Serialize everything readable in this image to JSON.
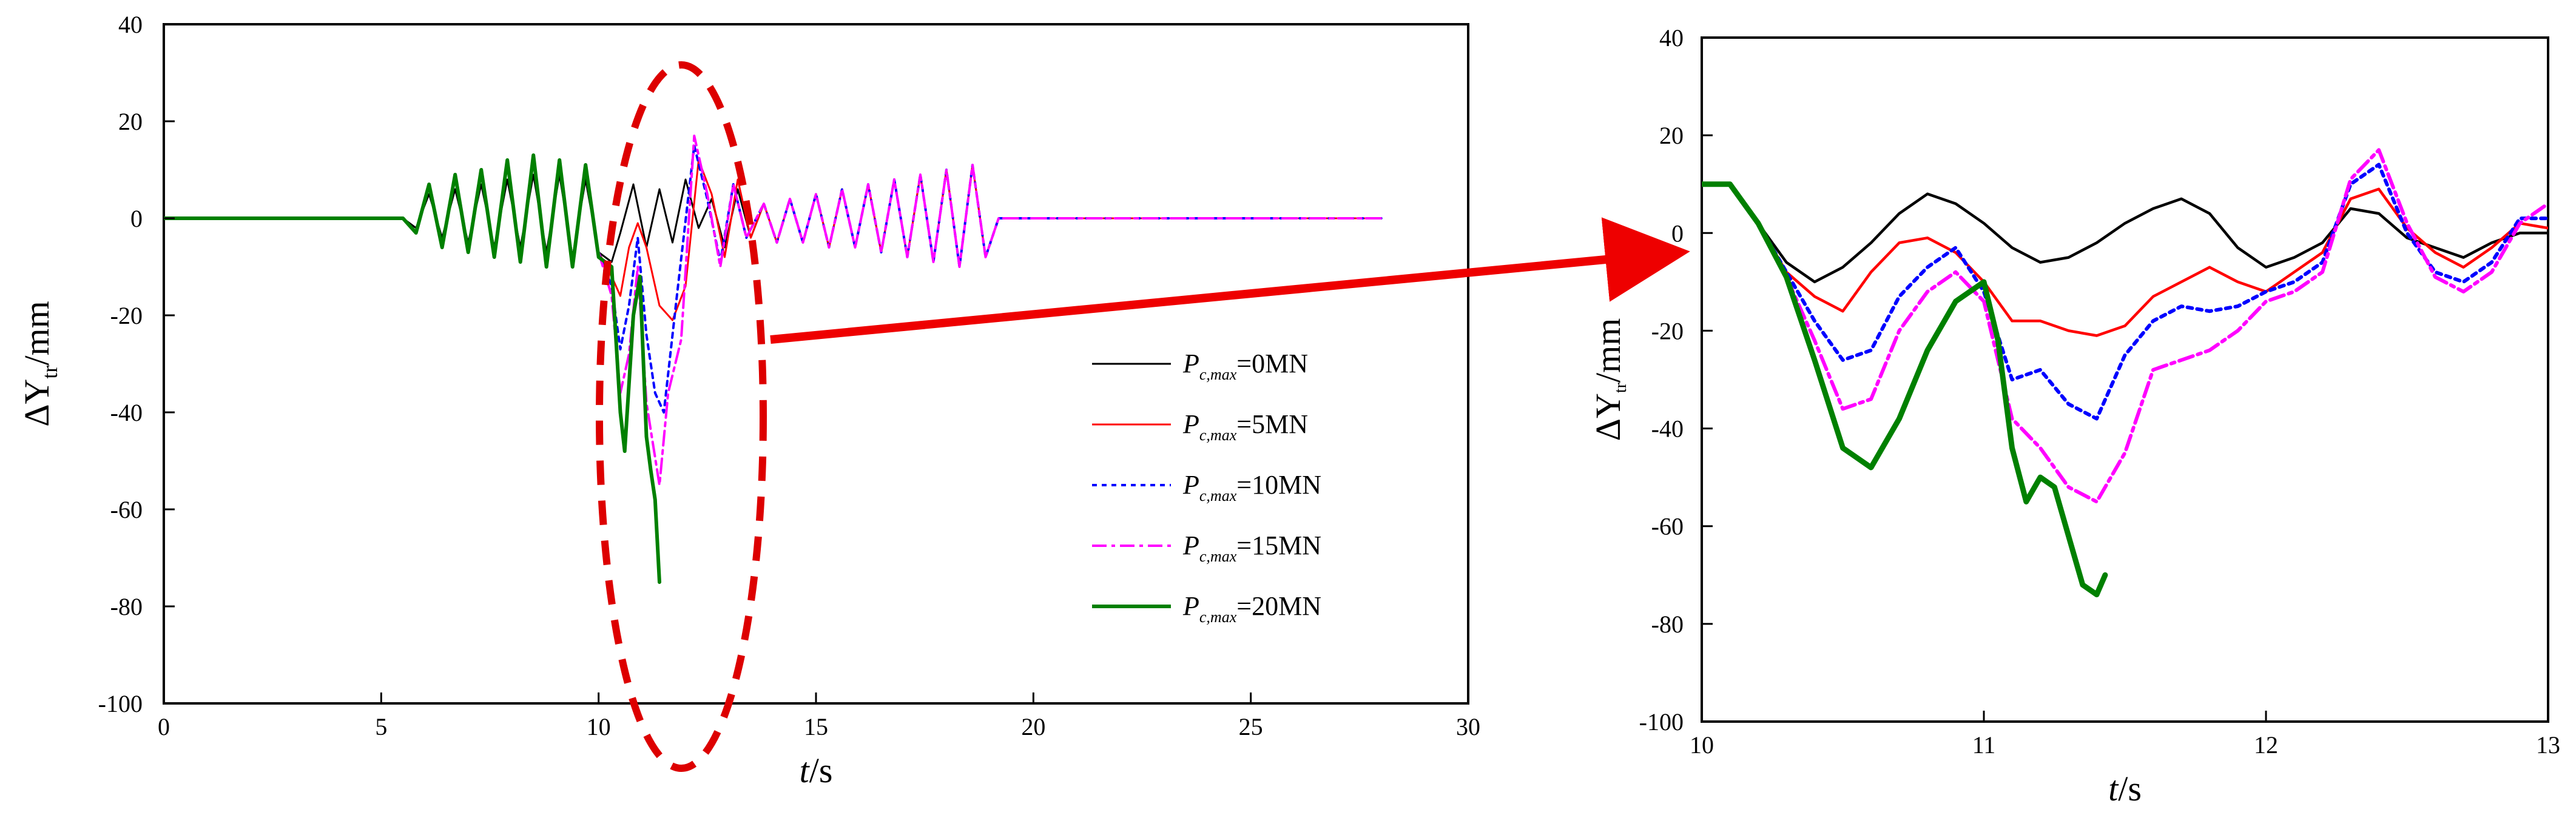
{
  "legend": {
    "prefix": "P",
    "subscript": "c,max",
    "entries": [
      {
        "label": "=0MN",
        "color": "#000000",
        "dash": "none",
        "width": 3
      },
      {
        "label": "=5MN",
        "color": "#ff0000",
        "dash": "none",
        "width": 3
      },
      {
        "label": "=10MN",
        "color": "#0000ff",
        "dash": "8,8",
        "width": 4
      },
      {
        "label": "=15MN",
        "color": "#ff00ff",
        "dash": "24,8,6,8",
        "width": 4
      },
      {
        "label": "=20MN",
        "color": "#008000",
        "dash": "none",
        "width": 6
      }
    ]
  },
  "chart_data": [
    {
      "type": "line",
      "xlabel_italic": "t",
      "xlabel_rest": "/s",
      "ylabel_main": "ΔY",
      "ylabel_sub": "tr",
      "ylabel_rest": "/mm",
      "xlim": [
        0,
        30
      ],
      "ylim": [
        -100,
        40
      ],
      "xticks": [
        "0",
        "5",
        "10",
        "15",
        "20",
        "25",
        "30"
      ],
      "yticks": [
        "40",
        "20",
        "0",
        "-20",
        "-40",
        "-60",
        "-80",
        "-100"
      ],
      "series": [
        {
          "x": [
            0,
            5.5,
            5.8,
            6.1,
            6.4,
            6.7,
            7.0,
            7.3,
            7.6,
            7.9,
            8.2,
            8.5,
            8.8,
            9.1,
            9.4,
            9.7,
            10.0,
            10.3,
            10.5,
            10.8,
            11.1,
            11.4,
            11.7,
            12.0,
            12.3,
            12.6,
            12.9,
            13.2,
            13.5,
            13.8,
            14.1,
            14.4,
            14.7,
            15.0,
            15.3,
            15.6,
            15.9,
            16.2,
            16.5,
            16.8,
            17.1,
            17.4,
            17.7,
            18.0,
            18.3,
            18.6,
            18.9,
            19.2,
            28
          ],
          "y": [
            0,
            0,
            -2,
            5,
            -4,
            6,
            -5,
            7,
            -6,
            8,
            -6,
            9,
            -7,
            9,
            -8,
            8,
            -7,
            -9,
            -3,
            7,
            -6,
            6,
            -5,
            8,
            -2,
            4,
            -6,
            6,
            -4,
            3,
            -5,
            4,
            -5,
            5,
            -6,
            6,
            -6,
            7,
            -7,
            8,
            -8,
            9,
            -9,
            10,
            -10,
            11,
            -8,
            0,
            0
          ]
        },
        {
          "x": [
            10.0,
            10.3,
            10.5,
            10.7,
            10.9,
            11.1,
            11.4,
            11.7,
            12.0,
            12.3,
            12.6,
            12.9,
            13.2,
            13.5,
            13.8,
            14.1,
            14.4,
            14.7,
            15.0,
            15.3,
            15.6,
            15.9,
            16.2,
            16.5,
            16.8,
            17.1,
            17.4,
            17.7,
            18.0,
            18.3,
            18.6,
            18.9,
            19.2,
            28
          ],
          "y": [
            -7,
            -12,
            -16,
            -6,
            -1,
            -6,
            -18,
            -21,
            -14,
            12,
            5,
            -8,
            8,
            -4,
            3,
            -5,
            4,
            -5,
            5,
            -6,
            6,
            -6,
            7,
            -7,
            8,
            -8,
            9,
            -9,
            10,
            -10,
            11,
            -8,
            0,
            0
          ]
        },
        {
          "x": [
            10.0,
            10.3,
            10.5,
            10.7,
            10.9,
            11.1,
            11.3,
            11.5,
            11.8,
            12.2,
            12.5,
            12.8,
            13.1,
            13.4,
            13.8,
            14.1,
            14.4,
            14.7,
            15.0,
            15.3,
            15.6,
            15.9,
            16.2,
            16.5,
            16.8,
            17.1,
            17.4,
            17.7,
            18.0,
            18.3,
            18.6,
            18.9,
            19.2,
            28
          ],
          "y": [
            -7,
            -14,
            -27,
            -18,
            -4,
            -24,
            -36,
            -40,
            -16,
            15,
            4,
            -9,
            7,
            -4,
            3,
            -5,
            4,
            -5,
            5,
            -6,
            6,
            -6,
            7,
            -7,
            8,
            -8,
            9,
            -9,
            10,
            -10,
            11,
            -8,
            0,
            0
          ]
        },
        {
          "x": [
            10.0,
            10.3,
            10.5,
            10.7,
            10.9,
            11.1,
            11.4,
            11.6,
            11.9,
            12.2,
            12.5,
            12.8,
            13.1,
            13.4,
            13.8,
            14.1,
            14.4,
            14.7,
            15.0,
            15.3,
            15.6,
            15.9,
            16.2,
            16.5,
            16.8,
            17.1,
            17.4,
            17.7,
            18.0,
            18.3,
            18.6,
            18.9,
            19.2,
            28
          ],
          "y": [
            -7,
            -16,
            -36,
            -28,
            -10,
            -38,
            -55,
            -36,
            -25,
            17,
            5,
            -10,
            7,
            -4,
            3,
            -5,
            4,
            -5,
            5,
            -6,
            6,
            -6,
            7,
            -7,
            8,
            -8,
            9,
            -9,
            10,
            -10,
            11,
            -8,
            0,
            0
          ]
        },
        {
          "x": [
            0,
            5.5,
            5.8,
            6.1,
            6.4,
            6.7,
            7.0,
            7.3,
            7.6,
            7.9,
            8.2,
            8.5,
            8.8,
            9.1,
            9.4,
            9.7,
            10.0,
            10.3,
            10.5,
            10.6,
            10.8,
            10.95,
            11.1,
            11.2,
            11.3,
            11.4
          ],
          "y": [
            0,
            0,
            -3,
            7,
            -6,
            9,
            -7,
            10,
            -8,
            12,
            -9,
            13,
            -10,
            12,
            -10,
            11,
            -8,
            -10,
            -40,
            -48,
            -20,
            -12,
            -45,
            -52,
            -58,
            -75
          ]
        }
      ]
    },
    {
      "type": "line",
      "xlabel_italic": "t",
      "xlabel_rest": "/s",
      "ylabel_main": "ΔY",
      "ylabel_sub": "tr",
      "ylabel_rest": "/mm",
      "xlim": [
        10,
        13
      ],
      "ylim": [
        -100,
        40
      ],
      "xticks": [
        "10",
        "11",
        "12",
        "13"
      ],
      "yticks": [
        "40",
        "20",
        "0",
        "-20",
        "-40",
        "-60",
        "-80",
        "-100"
      ],
      "series": [
        {
          "x": [
            10.0,
            10.1,
            10.2,
            10.3,
            10.4,
            10.5,
            10.6,
            10.7,
            10.8,
            10.9,
            11.0,
            11.1,
            11.2,
            11.3,
            11.4,
            11.5,
            11.6,
            11.7,
            11.8,
            11.9,
            12.0,
            12.1,
            12.2,
            12.3,
            12.4,
            12.5,
            12.6,
            12.7,
            12.8,
            12.9,
            13.0
          ],
          "y": [
            10,
            10,
            2,
            -6,
            -10,
            -7,
            -2,
            4,
            8,
            6,
            2,
            -3,
            -6,
            -5,
            -2,
            2,
            5,
            7,
            4,
            -3,
            -7,
            -5,
            -2,
            5,
            4,
            -1,
            -3,
            -5,
            -2,
            0,
            0
          ]
        },
        {
          "x": [
            10.0,
            10.1,
            10.2,
            10.3,
            10.4,
            10.5,
            10.6,
            10.7,
            10.8,
            10.9,
            11.0,
            11.1,
            11.2,
            11.3,
            11.4,
            11.5,
            11.6,
            11.7,
            11.8,
            11.9,
            12.0,
            12.1,
            12.2,
            12.3,
            12.4,
            12.5,
            12.6,
            12.7,
            12.8,
            12.9,
            13.0
          ],
          "y": [
            10,
            10,
            2,
            -8,
            -13,
            -16,
            -8,
            -2,
            -1,
            -4,
            -10,
            -18,
            -18,
            -20,
            -21,
            -19,
            -13,
            -10,
            -7,
            -10,
            -12,
            -8,
            -4,
            7,
            9,
            1,
            -4,
            -7,
            -3,
            2,
            1
          ]
        },
        {
          "x": [
            10.0,
            10.1,
            10.2,
            10.3,
            10.4,
            10.5,
            10.6,
            10.7,
            10.8,
            10.9,
            11.0,
            11.1,
            11.2,
            11.3,
            11.4,
            11.5,
            11.6,
            11.7,
            11.8,
            11.9,
            12.0,
            12.1,
            12.2,
            12.3,
            12.4,
            12.5,
            12.6,
            12.7,
            12.8,
            12.9,
            13.0
          ],
          "y": [
            10,
            10,
            2,
            -8,
            -18,
            -26,
            -24,
            -13,
            -7,
            -3,
            -12,
            -30,
            -28,
            -35,
            -38,
            -25,
            -18,
            -15,
            -16,
            -15,
            -12,
            -10,
            -6,
            10,
            14,
            0,
            -8,
            -10,
            -6,
            3,
            3
          ]
        },
        {
          "x": [
            10.0,
            10.1,
            10.2,
            10.3,
            10.4,
            10.5,
            10.6,
            10.7,
            10.8,
            10.9,
            11.0,
            11.1,
            11.2,
            11.3,
            11.4,
            11.5,
            11.6,
            11.7,
            11.8,
            11.9,
            12.0,
            12.1,
            12.2,
            12.3,
            12.4,
            12.5,
            12.6,
            12.7,
            12.8,
            12.9,
            13.0
          ],
          "y": [
            10,
            10,
            2,
            -9,
            -22,
            -36,
            -34,
            -20,
            -12,
            -8,
            -14,
            -38,
            -44,
            -52,
            -55,
            -45,
            -28,
            -26,
            -24,
            -20,
            -14,
            -12,
            -8,
            11,
            17,
            2,
            -9,
            -12,
            -8,
            2,
            6
          ]
        },
        {
          "x": [
            10.0,
            10.05,
            10.1,
            10.2,
            10.3,
            10.4,
            10.5,
            10.6,
            10.7,
            10.8,
            10.9,
            11.0,
            11.05,
            11.1,
            11.15,
            11.2,
            11.25,
            11.3,
            11.35,
            11.4,
            11.43
          ],
          "y": [
            10,
            10,
            10,
            2,
            -9,
            -26,
            -44,
            -48,
            -38,
            -24,
            -14,
            -10,
            -22,
            -44,
            -55,
            -50,
            -52,
            -62,
            -72,
            -74,
            -70
          ]
        }
      ]
    }
  ]
}
